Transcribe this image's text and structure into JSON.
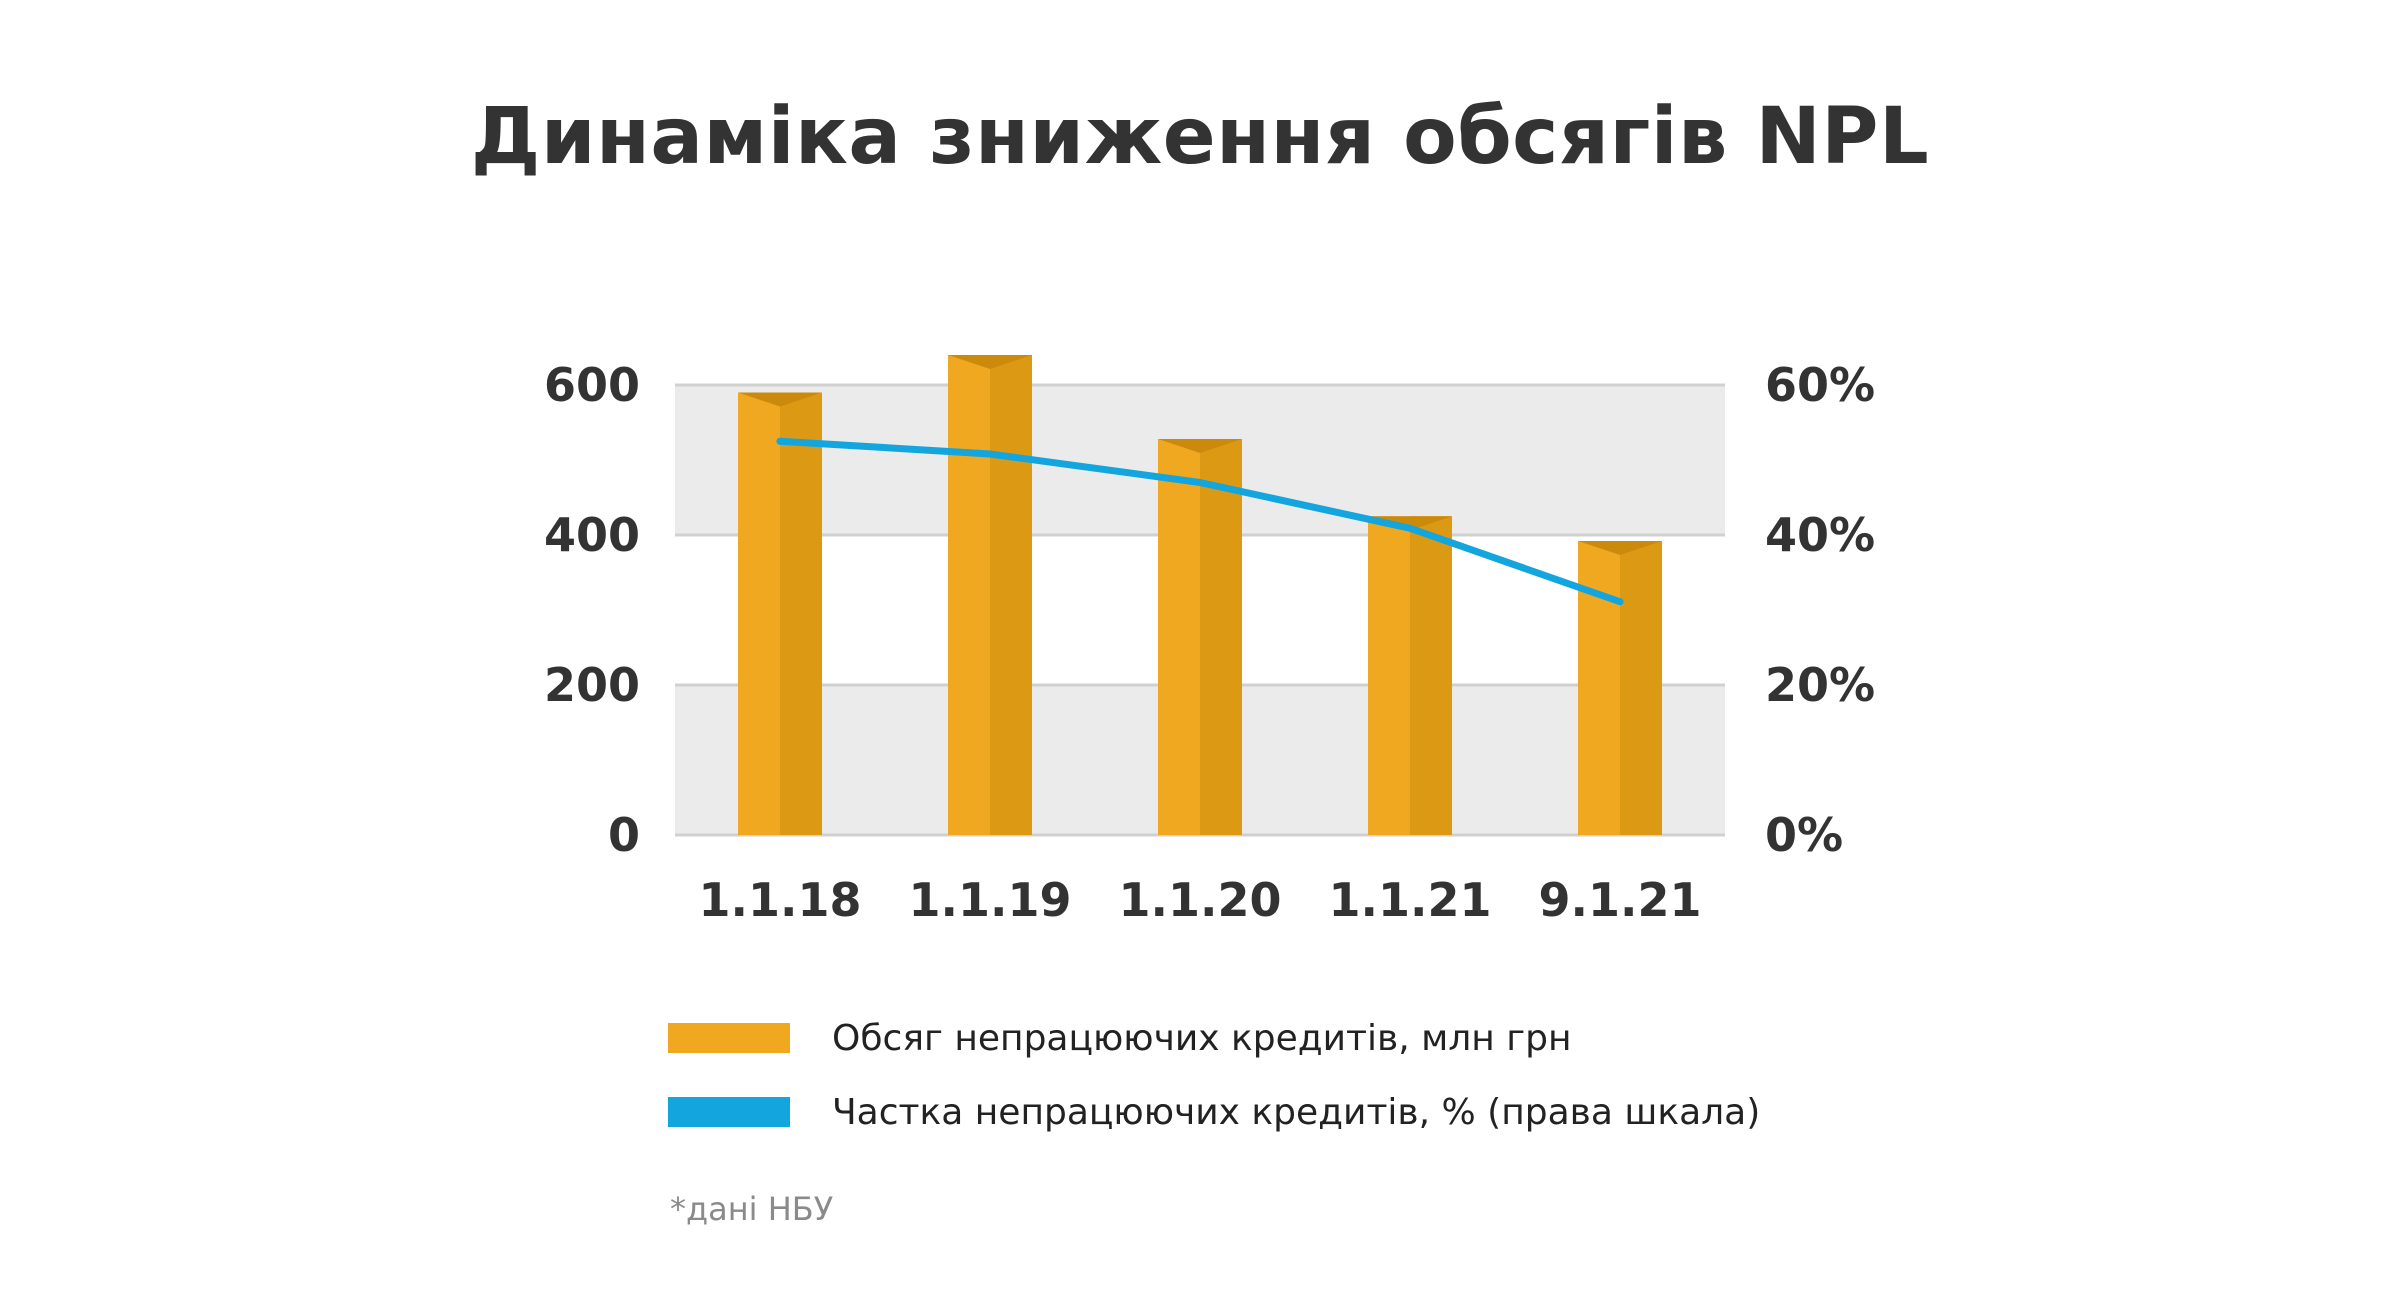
{
  "title": "Динаміка зниження обсягів NPL",
  "colors": {
    "bar": "#F0A820",
    "bar_shade": "#DC9A14",
    "bar_top": "#CC8A0C",
    "line": "#12A5DE",
    "band": "#EBEBEB",
    "grid": "#D0D0D0"
  },
  "chart_data": {
    "type": "bar",
    "title": "Динаміка зниження обсягів NPL",
    "categories": [
      "1.1.18",
      "1.1.19",
      "1.1.20",
      "1.1.21",
      "9.1.21"
    ],
    "series": [
      {
        "name": "Обсяг непрацюючих кредитів, млн грн",
        "type": "bar",
        "axis": "left",
        "values": [
          590,
          640,
          528,
          425,
          392
        ]
      },
      {
        "name": "Частка непрацюючих кредитів, % (права шкала)",
        "type": "line",
        "axis": "right",
        "values": [
          52.5,
          50.8,
          47.0,
          40.9,
          31.1
        ]
      }
    ],
    "y_left": {
      "min": 0,
      "max": 600,
      "ticks": [
        "0",
        "200",
        "400",
        "600"
      ]
    },
    "y_right": {
      "min": 0,
      "max": 60,
      "ticks": [
        "0%",
        "20%",
        "40%",
        "60%"
      ]
    },
    "grid": true,
    "legend_position": "bottom"
  },
  "legend": [
    {
      "label": "Обсяг непрацюючих кредитів, млн грн"
    },
    {
      "label": "Частка непрацюючих кредитів, % (права шкала)"
    }
  ],
  "note": "*дані НБУ"
}
